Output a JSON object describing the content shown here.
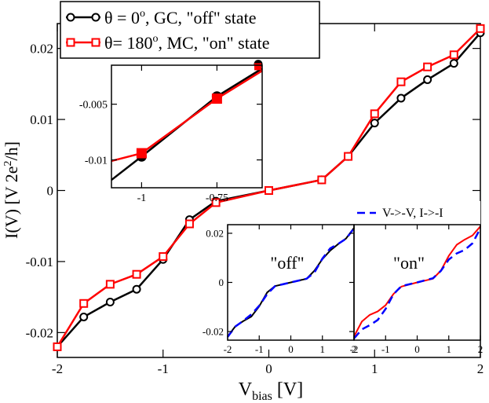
{
  "chart_data": [
    {
      "type": "line",
      "role": "main",
      "xlabel": "V",
      "xlabel_sub": "bias",
      "xlabel_unit": "[V]",
      "ylabel": "I(V) [V 2e",
      "ylabel_sup": "2",
      "ylabel_tail": "/h]",
      "xlim": [
        -2,
        2
      ],
      "ylim": [
        -0.0235,
        0.0235
      ],
      "xticks": [
        -2,
        -1,
        0,
        1,
        2
      ],
      "xtick_labels": [
        "-2",
        "-1",
        "0",
        "1",
        "2"
      ],
      "yticks": [
        -0.02,
        -0.01,
        0,
        0.01,
        0.02
      ],
      "ytick_labels": [
        "-0.02",
        "-0.01",
        "0",
        "0.01",
        "0.02"
      ],
      "grid": false,
      "legend_position": "top-left",
      "series": [
        {
          "name": "θ = 0ᵒ, GC, \"off\" state",
          "legend_main": "θ = 0",
          "legend_sup": "o",
          "legend_tail": ", GC, \"off\" state",
          "color": "#000000",
          "marker": "circle",
          "x": [
            -2,
            -1.75,
            -1.5,
            -1.25,
            -1,
            -0.75,
            -0.5,
            0,
            0.5,
            0.75,
            1,
            1.25,
            1.5,
            1.75,
            2
          ],
          "y": [
            -0.022,
            -0.0178,
            -0.0157,
            -0.0139,
            -0.0097,
            -0.0041,
            -0.0015,
            0,
            0.0015,
            0.0048,
            0.0095,
            0.013,
            0.0156,
            0.0179,
            0.0222
          ]
        },
        {
          "name": "θ= 180ᵒ, MC, \"on\" state",
          "legend_main": "θ= 180",
          "legend_sup": "o",
          "legend_tail": ", MC, \"on\" state",
          "color": "#ff0000",
          "marker": "square",
          "x": [
            -2,
            -1.75,
            -1.5,
            -1.25,
            -1,
            -0.75,
            -0.5,
            0,
            0.5,
            0.75,
            1,
            1.25,
            1.5,
            1.75,
            2
          ],
          "y": [
            -0.022,
            -0.0159,
            -0.0132,
            -0.0118,
            -0.0093,
            -0.0047,
            -0.0017,
            0,
            0.0015,
            0.0048,
            0.0108,
            0.0153,
            0.0174,
            0.0191,
            0.0228
          ]
        }
      ]
    },
    {
      "type": "line",
      "role": "zoom-inset",
      "xlim": [
        -1.1,
        -0.6
      ],
      "ylim": [
        -0.0125,
        -0.0015
      ],
      "xticks": [
        -1,
        -0.75
      ],
      "xtick_labels": [
        "-1",
        "-0.75"
      ],
      "yticks": [
        -0.01,
        -0.005
      ],
      "ytick_labels": [
        "-0.01",
        "-0.005"
      ],
      "series": [
        {
          "name": "θ = 0ᵒ, GC, \"off\" state",
          "color": "#000000",
          "marker": "circle",
          "x": [
            -1.1,
            -1,
            -0.75,
            -0.6
          ],
          "y": [
            -0.0118,
            -0.0097,
            -0.0043,
            -0.0018
          ]
        },
        {
          "name": "θ= 180ᵒ, MC, \"on\" state",
          "color": "#ff0000",
          "marker": "square",
          "x": [
            -1.1,
            -1,
            -0.75,
            -0.6
          ],
          "y": [
            -0.0101,
            -0.0094,
            -0.0045,
            -0.002
          ]
        }
      ]
    },
    {
      "type": "line",
      "role": "comparison-inset",
      "legend_label": "V->-V, I->-I",
      "legend_color": "#0000ff",
      "xlim": [
        -2,
        2
      ],
      "ylim": [
        -0.0235,
        0.0235
      ],
      "xticks": [
        -2,
        -1,
        0,
        1,
        2
      ],
      "xtick_labels": [
        "-2",
        "-1",
        "0",
        "1",
        "2"
      ],
      "yticks": [
        -0.02,
        0,
        0.02
      ],
      "ytick_labels": [
        "-0.02",
        "0",
        "0.02"
      ],
      "panels": [
        {
          "label": "\"off\"",
          "solid_color": "#000000",
          "solid": {
            "x": [
              -2,
              -1.75,
              -1.5,
              -1.25,
              -1,
              -0.75,
              -0.5,
              0,
              0.5,
              0.75,
              1,
              1.25,
              1.5,
              1.75,
              2
            ],
            "y": [
              -0.022,
              -0.0178,
              -0.0157,
              -0.0139,
              -0.0097,
              -0.0041,
              -0.0015,
              0,
              0.0015,
              0.0048,
              0.0095,
              0.013,
              0.0156,
              0.0179,
              0.0222
            ]
          },
          "dashed": {
            "x": [
              -2,
              -1.75,
              -1.5,
              -1.25,
              -1,
              -0.75,
              -0.5,
              0,
              0.5,
              0.75,
              1,
              1.25,
              1.5,
              1.75,
              2
            ],
            "y": [
              -0.0222,
              -0.0179,
              -0.0156,
              -0.013,
              -0.0095,
              -0.0048,
              -0.0015,
              0,
              0.0015,
              0.0041,
              0.0097,
              0.0139,
              0.0157,
              0.0178,
              0.022
            ]
          }
        },
        {
          "label": "\"on\"",
          "solid_color": "#ff0000",
          "solid": {
            "x": [
              -2,
              -1.75,
              -1.5,
              -1.25,
              -1,
              -0.75,
              -0.5,
              0,
              0.5,
              0.75,
              1,
              1.25,
              1.5,
              1.75,
              2
            ],
            "y": [
              -0.022,
              -0.0159,
              -0.0132,
              -0.0118,
              -0.0093,
              -0.0047,
              -0.0017,
              0,
              0.0015,
              0.0048,
              0.0108,
              0.0153,
              0.0174,
              0.0191,
              0.0228
            ]
          },
          "dashed": {
            "x": [
              -2,
              -1.75,
              -1.5,
              -1.25,
              -1,
              -0.75,
              -0.5,
              0,
              0.5,
              0.75,
              1,
              1.25,
              1.5,
              1.75,
              2
            ],
            "y": [
              -0.0228,
              -0.0191,
              -0.0174,
              -0.0153,
              -0.0108,
              -0.0048,
              -0.0015,
              0,
              0.0017,
              0.0047,
              0.0093,
              0.0118,
              0.0132,
              0.0159,
              0.022
            ]
          }
        }
      ]
    }
  ]
}
